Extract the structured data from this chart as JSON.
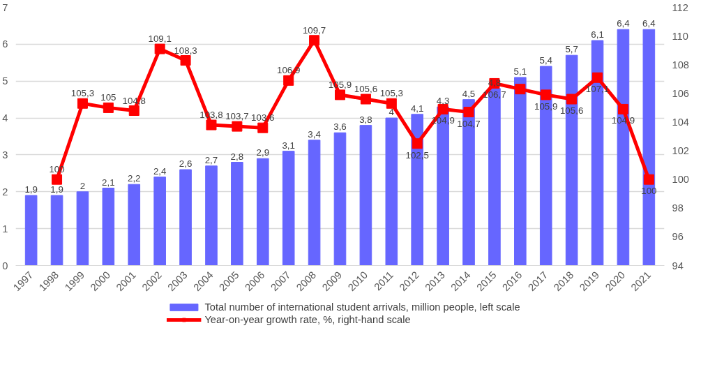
{
  "chart_data": {
    "type": "bar",
    "categories": [
      "1997",
      "1998",
      "1999",
      "2000",
      "2001",
      "2002",
      "2003",
      "2004",
      "2005",
      "2006",
      "2007",
      "2008",
      "2009",
      "2010",
      "2011",
      "2012",
      "2013",
      "2014",
      "2015",
      "2016",
      "2017",
      "2018",
      "2019",
      "2020",
      "2021"
    ],
    "series": [
      {
        "name": "Total number of international student arrivals, million people, left scale",
        "color": "#6666ff",
        "values": [
          1.9,
          1.9,
          2,
          2.1,
          2.2,
          2.4,
          2.6,
          2.7,
          2.8,
          2.9,
          3.1,
          3.4,
          3.6,
          3.8,
          4,
          4.1,
          4.3,
          4.5,
          4.8,
          5.1,
          5.4,
          5.7,
          6.1,
          6.4,
          6.4
        ],
        "value_labels": [
          "1,9",
          "1,9",
          "2",
          "2,1",
          "2,2",
          "2,4",
          "2,6",
          "2,7",
          "2,8",
          "2,9",
          "3,1",
          "3,4",
          "3,6",
          "3,8",
          "4",
          "4,1",
          "4,3",
          "4,5",
          "4,8",
          "5,1",
          "5,4",
          "5,7",
          "6,1",
          "6,4",
          "6,4"
        ]
      },
      {
        "name": "Year-on-year growth rate, %, right-hand scale",
        "type": "line",
        "axis": "y2",
        "color": "#ff0000",
        "marker": "square",
        "values": [
          null,
          100,
          105.3,
          105,
          104.8,
          109.1,
          108.3,
          103.8,
          103.7,
          103.6,
          106.9,
          109.7,
          105.9,
          105.6,
          105.3,
          102.5,
          104.9,
          104.7,
          106.7,
          106.3,
          105.9,
          105.6,
          107.1,
          104.9,
          100
        ],
        "value_labels": [
          null,
          "100",
          "105,3",
          "105",
          "104,8",
          "109,1",
          "108,3",
          "103,8",
          "103,7",
          "103,6",
          "106,9",
          "109,7",
          "105,9",
          "105,6",
          "105,3",
          "102,5",
          "104,9",
          "104,7",
          "106,7",
          null,
          "105,9",
          "105,6",
          "107,1",
          "104,9",
          "100"
        ]
      }
    ],
    "ylim": [
      0,
      7
    ],
    "yticks": [
      0,
      1,
      2,
      3,
      4,
      5,
      6,
      7
    ],
    "y2lim": [
      94,
      112
    ],
    "y2ticks": [
      94,
      96,
      98,
      100,
      102,
      104,
      106,
      108,
      110,
      112
    ],
    "grid": "y",
    "legend": "bottom"
  }
}
